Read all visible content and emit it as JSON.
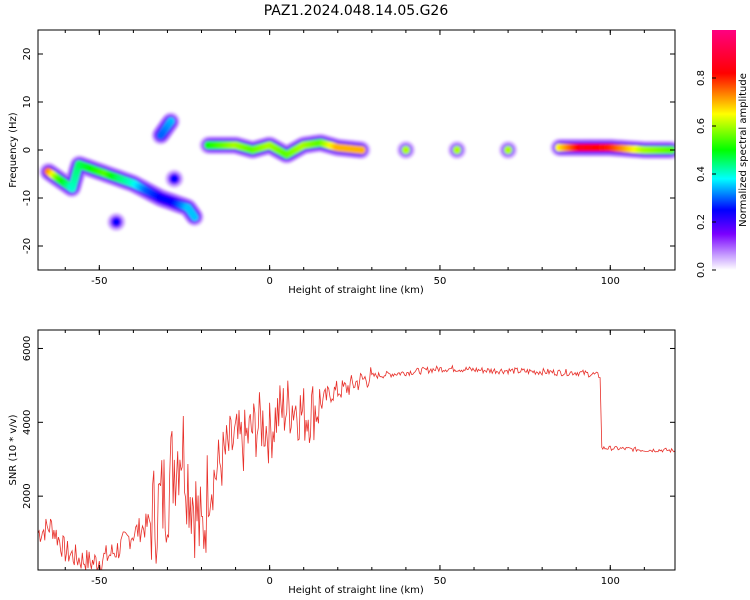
{
  "figure": {
    "title": "PAZ1.2024.048.14.05.G26"
  },
  "chart_data": [
    {
      "type": "heatmap",
      "xlabel": "Height of straight line (km)",
      "ylabel": "Frequency (Hz)",
      "xlim": [
        -68,
        119
      ],
      "ylim": [
        -25,
        25
      ],
      "xticks": [
        -50,
        0,
        50,
        100
      ],
      "yticks": [
        -20,
        -10,
        0,
        10,
        20
      ],
      "colorbar": {
        "label": "Normalized spectral amplitude",
        "range": [
          0,
          1
        ],
        "ticks": [
          "0.0",
          "0.2",
          "0.4",
          "0.6",
          "0.8"
        ],
        "colormap": [
          "#ffffff",
          "#7a00ff",
          "#0000ff",
          "#00ffff",
          "#00ff00",
          "#ffff00",
          "#ff0000",
          "#ff0080"
        ]
      },
      "ridge": [
        {
          "x": -65,
          "y": -4.5,
          "amp": 0.75
        },
        {
          "x": -62,
          "y": -6.0,
          "amp": 0.55
        },
        {
          "x": -58,
          "y": -8.0,
          "amp": 0.4
        },
        {
          "x": -56,
          "y": -3.0,
          "amp": 0.45
        },
        {
          "x": -52,
          "y": -4.0,
          "amp": 0.5
        },
        {
          "x": -48,
          "y": -5.0,
          "amp": 0.55
        },
        {
          "x": -44,
          "y": -6.0,
          "amp": 0.45
        },
        {
          "x": -40,
          "y": -7.0,
          "amp": 0.4
        },
        {
          "x": -36,
          "y": -8.5,
          "amp": 0.3
        },
        {
          "x": -32,
          "y": -10.0,
          "amp": 0.25
        },
        {
          "x": -28,
          "y": -11.0,
          "amp": 0.25
        },
        {
          "x": -24,
          "y": -12.0,
          "amp": 0.35
        },
        {
          "x": -22,
          "y": -14.0,
          "amp": 0.35
        },
        {
          "x": -29,
          "y": 6.0,
          "amp": 0.35
        },
        {
          "x": -32,
          "y": 3.0,
          "amp": 0.3
        },
        {
          "x": -28,
          "y": -6.0,
          "amp": 0.25
        },
        {
          "x": -45,
          "y": -15.0,
          "amp": 0.25
        },
        {
          "x": -18,
          "y": 1.0,
          "amp": 0.5
        },
        {
          "x": -10,
          "y": 1.0,
          "amp": 0.6
        },
        {
          "x": -5,
          "y": 0.0,
          "amp": 0.55
        },
        {
          "x": 0,
          "y": 1.0,
          "amp": 0.6
        },
        {
          "x": 5,
          "y": -1.0,
          "amp": 0.55
        },
        {
          "x": 10,
          "y": 1.0,
          "amp": 0.6
        },
        {
          "x": 15,
          "y": 1.5,
          "amp": 0.55
        },
        {
          "x": 20,
          "y": 0.5,
          "amp": 0.7
        },
        {
          "x": 27,
          "y": 0.0,
          "amp": 0.7
        },
        {
          "x": 40,
          "y": 0.0,
          "amp": 0.6
        },
        {
          "x": 55,
          "y": 0.0,
          "amp": 0.6
        },
        {
          "x": 70,
          "y": 0.0,
          "amp": 0.6
        },
        {
          "x": 85,
          "y": 0.5,
          "amp": 0.65
        },
        {
          "x": 92,
          "y": 0.5,
          "amp": 0.85
        },
        {
          "x": 100,
          "y": 0.5,
          "amp": 0.8
        },
        {
          "x": 110,
          "y": 0.0,
          "amp": 0.6
        },
        {
          "x": 118,
          "y": 0.0,
          "amp": 0.55
        }
      ]
    },
    {
      "type": "line",
      "xlabel": "Height of straight line (km)",
      "ylabel": "SNR (10 * v/v)",
      "xlim": [
        -68,
        119
      ],
      "ylim": [
        0,
        6500
      ],
      "xticks": [
        -50,
        0,
        50,
        100
      ],
      "yticks": [
        2000,
        4000,
        6000
      ],
      "series": [
        {
          "color": "#e8302a",
          "x": [
            -68,
            -64,
            -60,
            -56,
            -52,
            -48,
            -44,
            -40,
            -36,
            -32,
            -30,
            -28,
            -26,
            -25,
            -24,
            -22,
            -20,
            -18,
            -15,
            -12,
            -10,
            -8,
            -5,
            -2,
            0,
            2,
            5,
            7,
            10,
            12,
            15,
            18,
            22,
            26,
            30,
            35,
            40,
            45,
            50,
            55,
            60,
            65,
            70,
            75,
            80,
            85,
            90,
            95,
            97,
            97.5,
            100,
            105,
            110,
            115,
            119
          ],
          "y": [
            1000,
            1200,
            500,
            300,
            200,
            350,
            600,
            1000,
            1200,
            1800,
            2200,
            3000,
            3500,
            3200,
            2500,
            1800,
            800,
            2200,
            2800,
            3300,
            3500,
            3400,
            3800,
            4000,
            3700,
            4200,
            4400,
            4500,
            4200,
            4300,
            4500,
            4800,
            4900,
            5100,
            5250,
            5300,
            5350,
            5400,
            5450,
            5450,
            5420,
            5400,
            5400,
            5380,
            5370,
            5350,
            5350,
            5300,
            5250,
            3300,
            3300,
            3280,
            3250,
            3250,
            3230
          ]
        }
      ]
    }
  ]
}
